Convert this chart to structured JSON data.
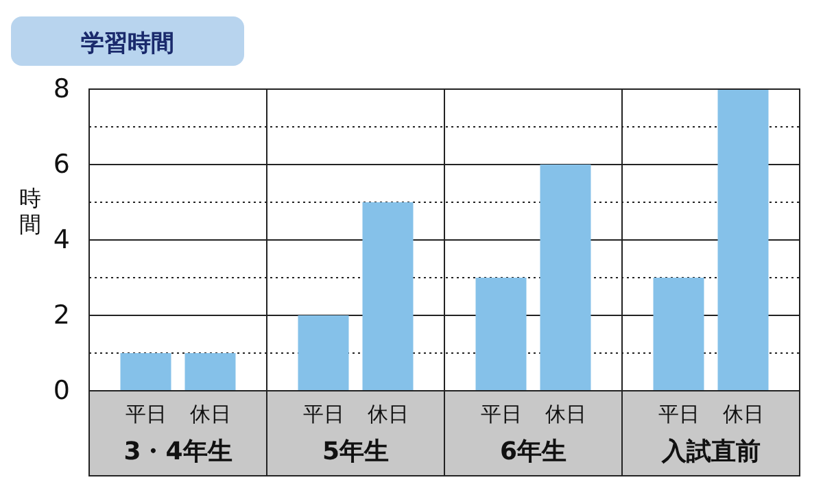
{
  "chart_data": {
    "type": "bar",
    "title": "学習時間",
    "ylabel": "時間",
    "categories": [
      "3・4年生",
      "5年生",
      "6年生",
      "入試直前"
    ],
    "series": [
      {
        "name": "平日",
        "color": "#85c1e9",
        "values": [
          1,
          2,
          3,
          3
        ]
      },
      {
        "name": "休日",
        "color": "#85c1e9",
        "values": [
          1,
          5,
          6,
          8
        ]
      }
    ],
    "ylim": [
      0,
      8
    ],
    "yticks": [
      0,
      {
        "value": 1,
        "label": null
      },
      2,
      {
        "value": 3,
        "label": null
      },
      4,
      {
        "value": 5,
        "label": null
      },
      6,
      {
        "value": 7,
        "label": null
      },
      8
    ],
    "grid": "y"
  }
}
